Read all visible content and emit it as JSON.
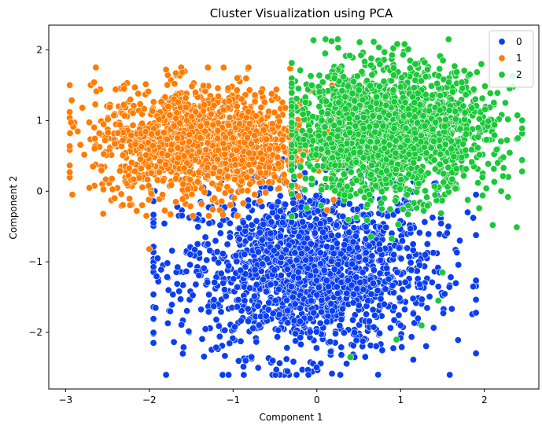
{
  "chart_data": {
    "type": "scatter",
    "title": "Cluster Visualization using PCA",
    "xlabel": "Component 1",
    "ylabel": "Component 2",
    "xlim": [
      -3.2,
      2.65
    ],
    "ylim": [
      -2.8,
      2.35
    ],
    "xticks": [
      -3,
      -2,
      -1,
      0,
      1,
      2
    ],
    "yticks": [
      -2,
      -1,
      0,
      1,
      2
    ],
    "grid": false,
    "legend_position": "top-right",
    "series": [
      {
        "name": "0",
        "color": "#0a3ef0",
        "cloud": {
          "center": [
            -0.1,
            -1.1
          ],
          "spread": [
            0.75,
            0.6
          ],
          "count": 1700,
          "x_range": [
            -1.95,
            1.9
          ],
          "y_range": [
            -2.6,
            0.45
          ]
        },
        "points": [
          [
            -0.1,
            -2.6
          ],
          [
            -0.7,
            -2.5
          ],
          [
            -0.35,
            -2.55
          ],
          [
            -1.6,
            -2.3
          ],
          [
            -1.75,
            -1.7
          ],
          [
            -1.9,
            -0.95
          ],
          [
            1.45,
            -1.35
          ],
          [
            1.9,
            -0.05
          ],
          [
            1.8,
            -0.3
          ],
          [
            1.0,
            -1.9
          ],
          [
            0.45,
            -2.35
          ],
          [
            -0.85,
            -2.4
          ]
        ]
      },
      {
        "name": "1",
        "color": "#ff7c00",
        "cloud": {
          "center": [
            -1.35,
            0.7
          ],
          "spread": [
            0.65,
            0.38
          ],
          "count": 1500,
          "x_range": [
            -2.95,
            0.2
          ],
          "y_range": [
            -0.35,
            1.75
          ]
        },
        "points": [
          [
            -2.95,
            1.12
          ],
          [
            -2.8,
            1.18
          ],
          [
            -2.55,
            -0.32
          ],
          [
            -2.0,
            -0.82
          ],
          [
            -1.3,
            1.75
          ],
          [
            -1.8,
            1.72
          ],
          [
            -2.3,
            1.45
          ],
          [
            -2.15,
            -0.28
          ],
          [
            -0.95,
            1.6
          ]
        ]
      },
      {
        "name": "2",
        "color": "#1ac938",
        "cloud": {
          "center": [
            0.85,
            0.85
          ],
          "spread": [
            0.6,
            0.45
          ],
          "count": 1900,
          "x_range": [
            -0.3,
            2.45
          ],
          "y_range": [
            -0.9,
            2.15
          ]
        },
        "points": [
          [
            0.25,
            2.15
          ],
          [
            0.1,
            1.95
          ],
          [
            2.45,
            0.28
          ],
          [
            2.4,
            0.75
          ],
          [
            2.2,
            0.0
          ],
          [
            2.1,
            -0.48
          ],
          [
            1.3,
            1.62
          ],
          [
            0.65,
            1.88
          ],
          [
            1.5,
            -1.15
          ],
          [
            1.25,
            -1.9
          ],
          [
            0.95,
            -2.1
          ],
          [
            0.4,
            -2.35
          ],
          [
            1.45,
            -1.55
          ],
          [
            2.25,
            1.25
          ]
        ]
      }
    ]
  }
}
